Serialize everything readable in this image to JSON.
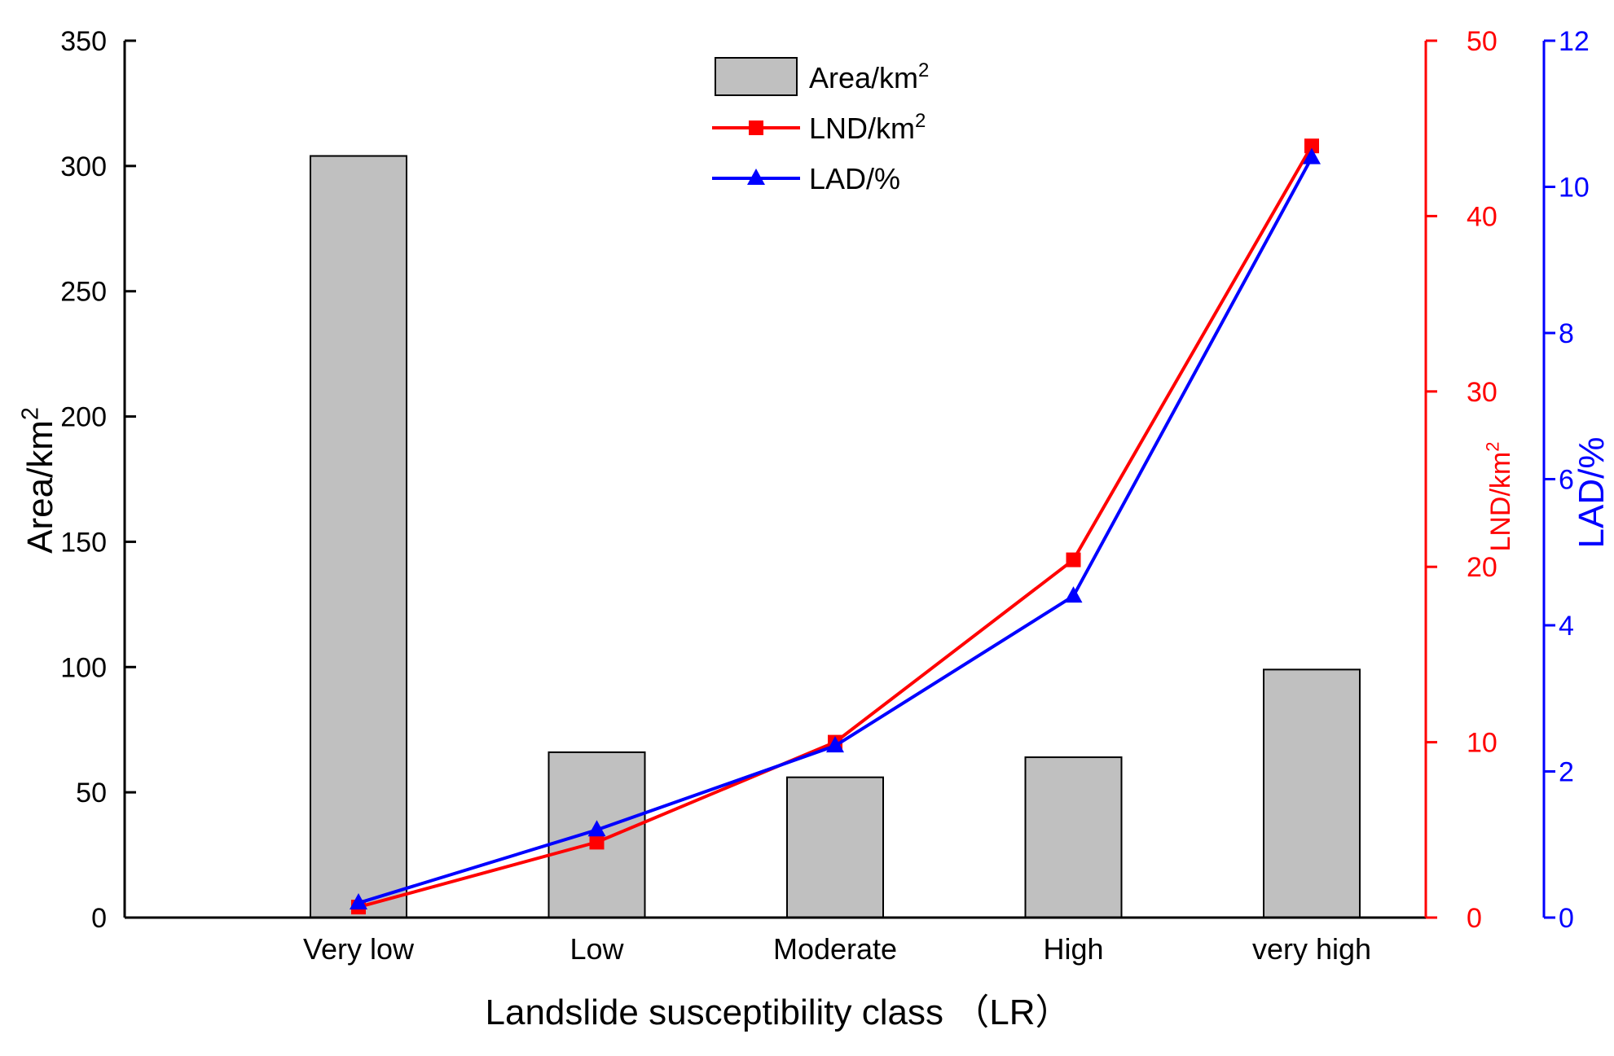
{
  "chart_data": {
    "type": "bar",
    "categories": [
      "Very low",
      "Low",
      "Moderate",
      "High",
      "very high"
    ],
    "series": [
      {
        "name": "Area/km",
        "name_sup": "2",
        "type": "bar",
        "axis": "left",
        "color": "#c0c0c0",
        "values": [
          304,
          66,
          56,
          64,
          99
        ]
      },
      {
        "name": "LND/km",
        "name_sup": "2",
        "type": "line",
        "marker": "square",
        "axis": "right1",
        "color": "#ff0000",
        "values": [
          0.6,
          4.3,
          10.0,
          20.4,
          44.0
        ]
      },
      {
        "name": "LAD/%",
        "type": "line",
        "marker": "triangle",
        "axis": "right2",
        "color": "#0000ff",
        "values": [
          0.2,
          1.2,
          2.35,
          4.4,
          10.4
        ]
      }
    ],
    "xlabel": "Landslide susceptibility class （LR）",
    "axes": {
      "left": {
        "label": "Area/km",
        "label_sup": "2",
        "ylim": [
          0,
          350
        ],
        "ticks": [
          "0",
          "50",
          "100",
          "150",
          "200",
          "250",
          "300",
          "350"
        ],
        "color": "#000000"
      },
      "right1": {
        "label": "LND/km",
        "label_sup": "2",
        "ylim": [
          0,
          50
        ],
        "ticks": [
          "0",
          "10",
          "20",
          "30",
          "40",
          "50"
        ],
        "color": "#ff0000"
      },
      "right2": {
        "label": "LAD/%",
        "ylim": [
          0,
          12
        ],
        "ticks": [
          "0",
          "2",
          "4",
          "6",
          "8",
          "10",
          "12"
        ],
        "color": "#0000ff"
      }
    },
    "legend_placement": "top-center",
    "grid": false
  }
}
